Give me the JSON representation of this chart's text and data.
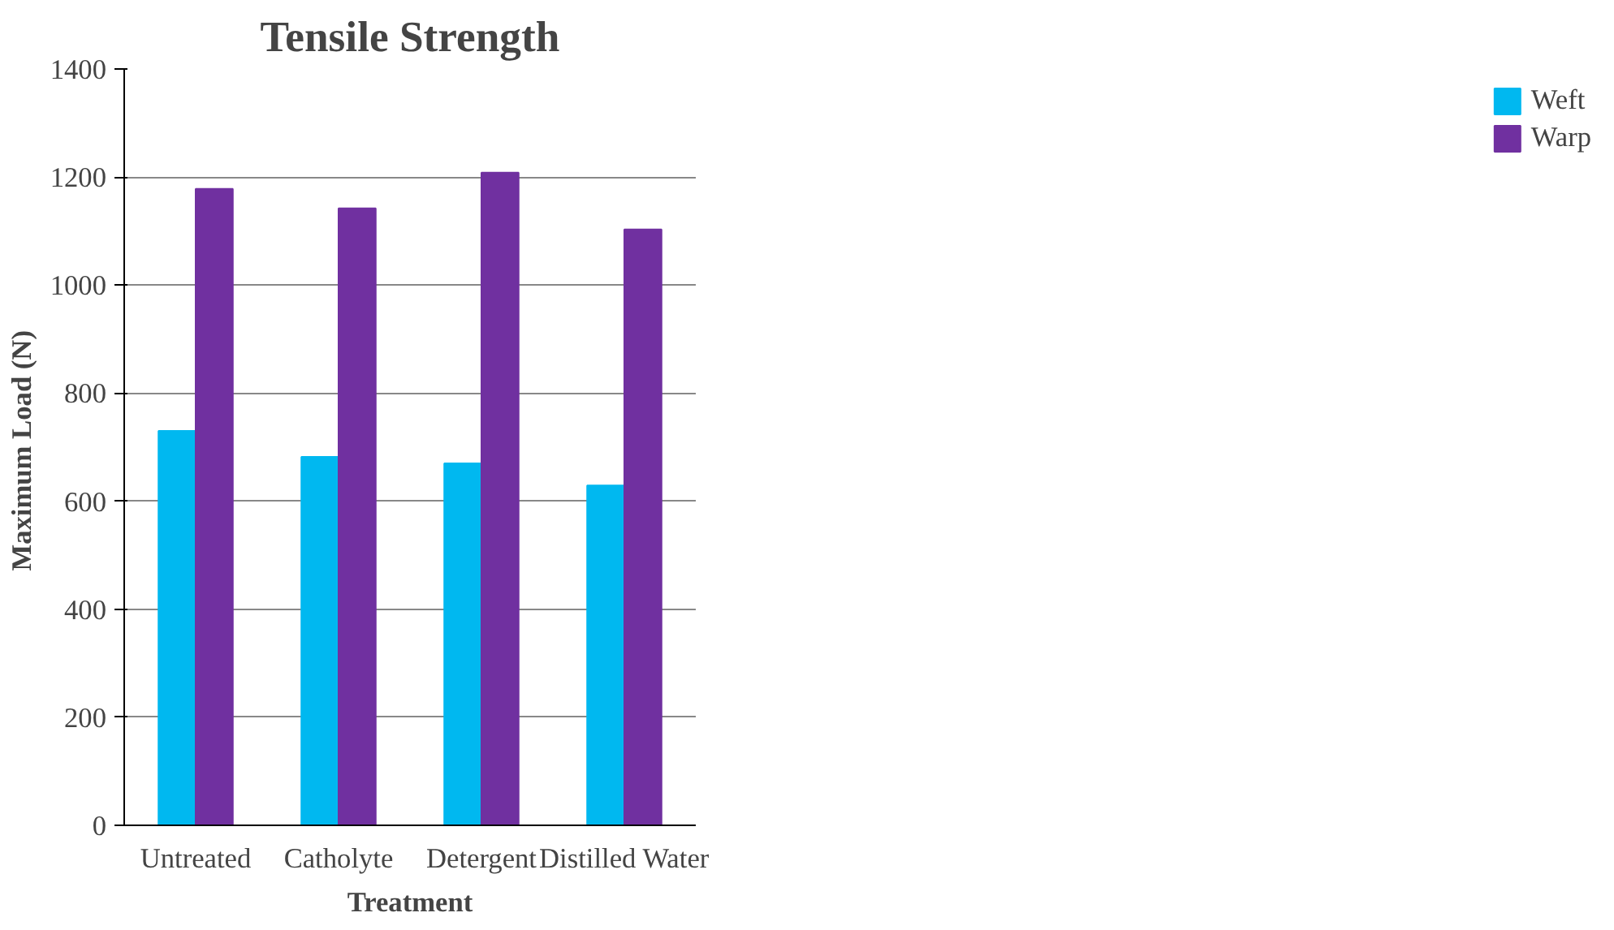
{
  "chart_data": {
    "type": "bar",
    "title": "Tensile Strength",
    "xlabel": "Treatment",
    "ylabel": "Maximum Load  (N)",
    "categories": [
      "Untreated",
      "Catholyte",
      "Detergent",
      "Distilled Water"
    ],
    "series": [
      {
        "name": "Weft",
        "color": "#00b8f0",
        "values": [
          730,
          682,
          670,
          629
        ]
      },
      {
        "name": "Warp",
        "color": "#7030a0",
        "values": [
          1178,
          1142,
          1208,
          1103
        ]
      }
    ],
    "ylim": [
      0,
      1400
    ],
    "yticks": [
      0,
      200,
      400,
      600,
      800,
      1000,
      1200,
      1400
    ],
    "grid": "y",
    "legend": "right"
  }
}
